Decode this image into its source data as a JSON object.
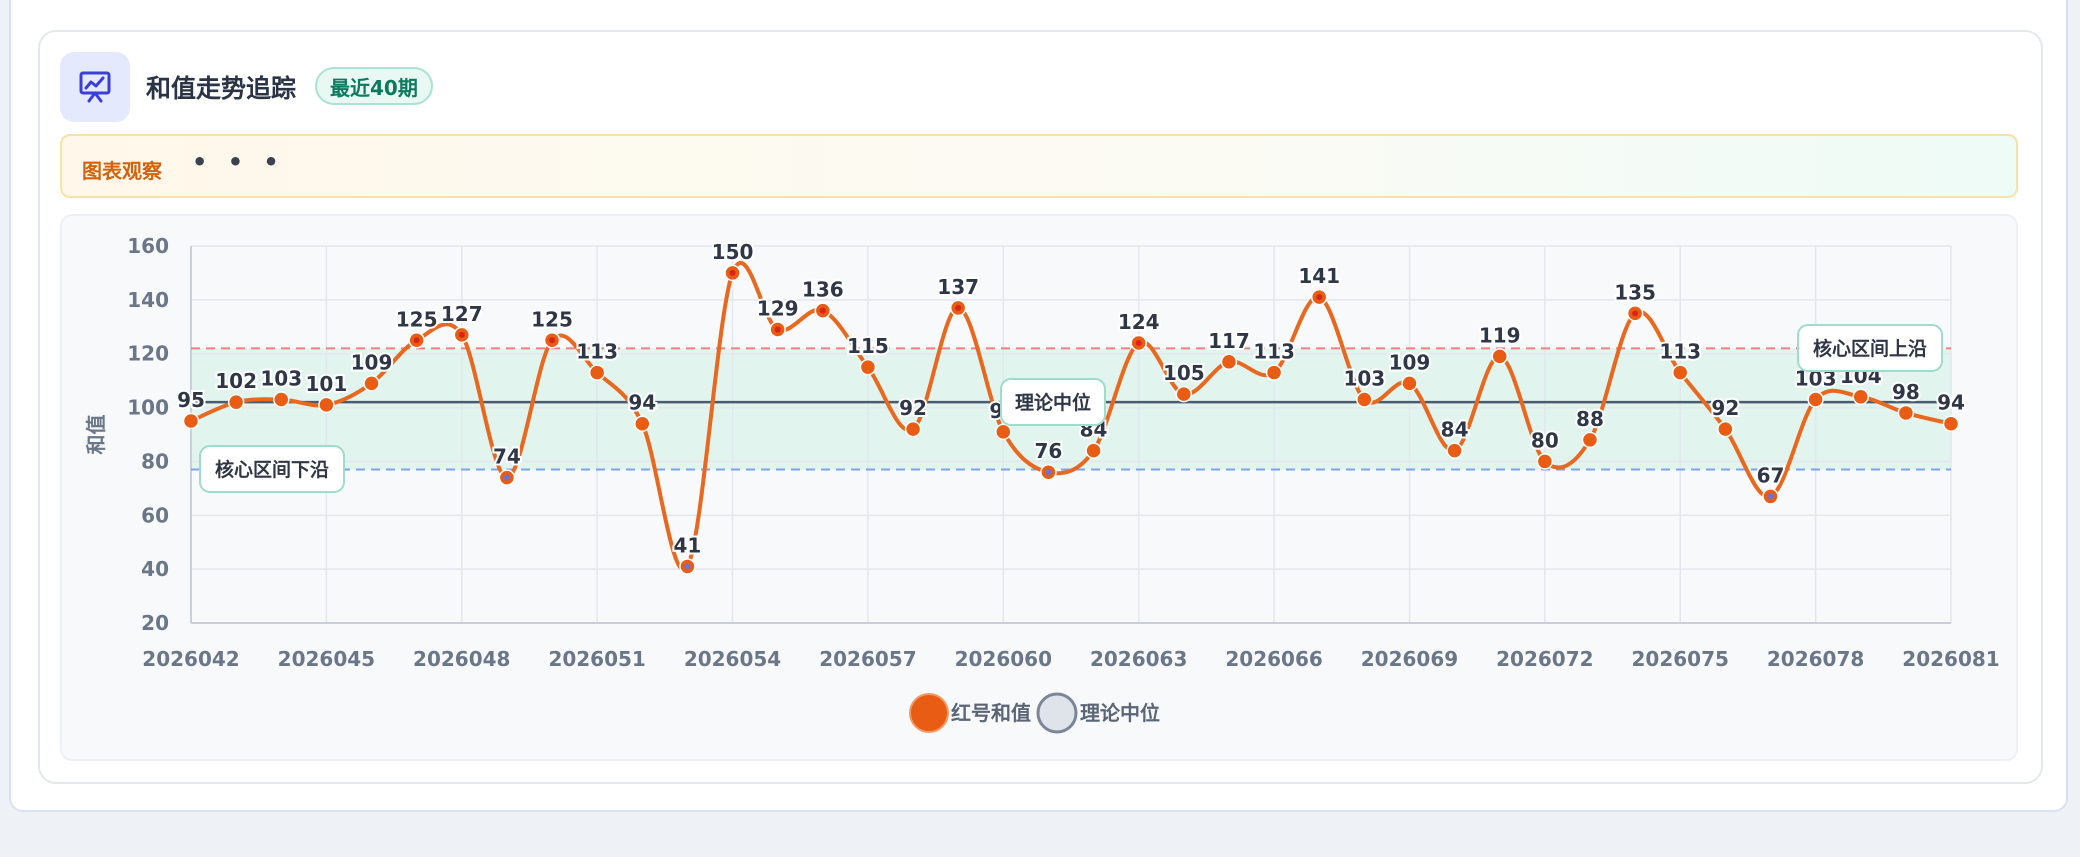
{
  "header": {
    "title": "和值走势追踪",
    "badge": "最近40期"
  },
  "observation": {
    "label": "图表观察",
    "dots": "• • •"
  },
  "colors": {
    "line": "#e8681f",
    "point": "#e85c13",
    "band": "#d9f2ea",
    "upper_line": "#f07f7f",
    "lower_line": "#7aa5ec",
    "median_line": "#4a5a70",
    "low_point_center": "#6a73d8"
  },
  "chart_data": {
    "type": "line",
    "ylabel": "和值",
    "ylim": [
      20,
      160
    ],
    "yticks": [
      20,
      40,
      60,
      80,
      100,
      120,
      140,
      160
    ],
    "x": [
      "2026042",
      "2026043",
      "2026044",
      "2026045",
      "2026046",
      "2026047",
      "2026048",
      "2026049",
      "2026050",
      "2026051",
      "2026052",
      "2026053",
      "2026054",
      "2026055",
      "2026056",
      "2026057",
      "2026058",
      "2026059",
      "2026060",
      "2026061",
      "2026062",
      "2026063",
      "2026064",
      "2026065",
      "2026066",
      "2026067",
      "2026068",
      "2026069",
      "2026070",
      "2026071",
      "2026072",
      "2026073",
      "2026074",
      "2026075",
      "2026076",
      "2026077",
      "2026078",
      "2026079",
      "2026080",
      "2026081"
    ],
    "xtick_labels": [
      "2026042",
      "2026045",
      "2026048",
      "2026051",
      "2026054",
      "2026057",
      "2026060",
      "2026063",
      "2026066",
      "2026069",
      "2026072",
      "2026075",
      "2026078",
      "2026081"
    ],
    "grid": true,
    "series": [
      {
        "name": "红号和值",
        "values": [
          95,
          102,
          103,
          101,
          109,
          125,
          127,
          74,
          125,
          113,
          94,
          41,
          150,
          129,
          136,
          115,
          92,
          137,
          91,
          76,
          84,
          124,
          105,
          117,
          113,
          141,
          103,
          109,
          84,
          119,
          80,
          88,
          135,
          113,
          92,
          67,
          103,
          104,
          98,
          94
        ]
      }
    ],
    "median": {
      "name": "理论中位",
      "value": 102
    },
    "core_band": {
      "lower": 77,
      "upper": 122
    },
    "annotations": {
      "median": "理论中位",
      "upper": "核心区间上沿",
      "lower": "核心区间下沿"
    },
    "legend": [
      "红号和值",
      "理论中位"
    ],
    "legend_position": "bottom"
  }
}
